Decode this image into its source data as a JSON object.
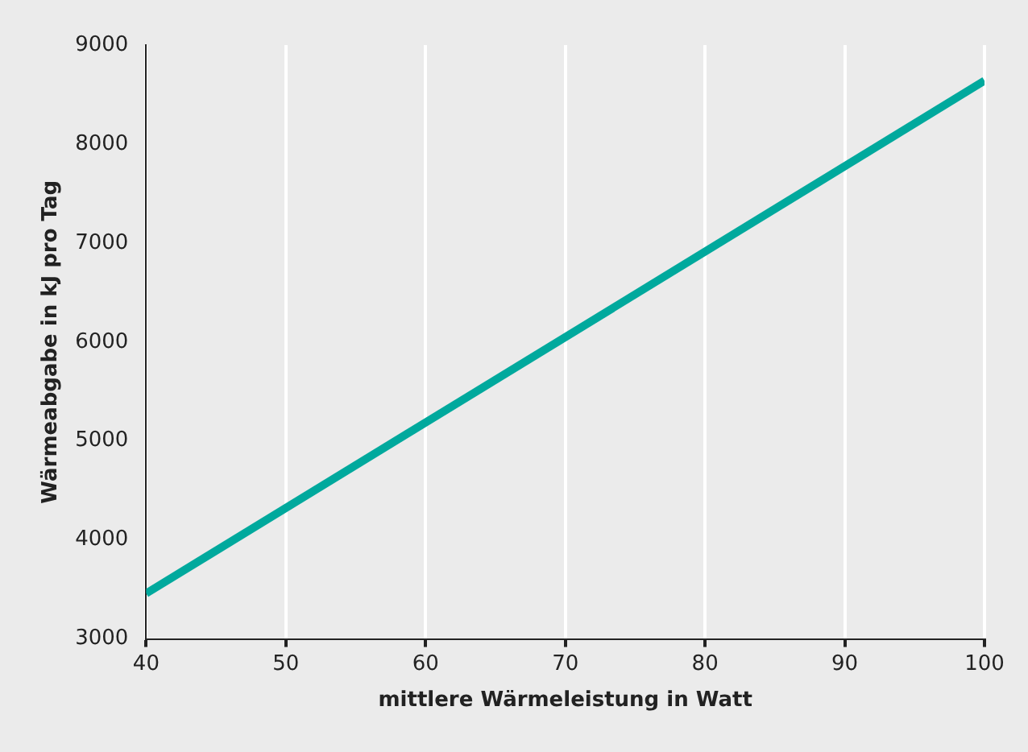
{
  "chart_data": {
    "type": "line",
    "xlabel": "mittlere Wärmeleistung in Watt",
    "ylabel": "Wärmeabgabe in kJ pro Tag",
    "x": [
      40,
      100
    ],
    "series": [
      {
        "color": "#00a99d",
        "values": [
          3460,
          8640
        ]
      }
    ],
    "xlim": [
      40,
      100
    ],
    "xticks": [
      40,
      50,
      60,
      70,
      80,
      90,
      100
    ],
    "ylim": [
      3000,
      9000
    ],
    "yticks": [
      3000,
      4000,
      5000,
      6000,
      7000,
      8000,
      9000
    ],
    "grid": "x",
    "legend": false,
    "marker": "none",
    "line_style": "solid"
  }
}
